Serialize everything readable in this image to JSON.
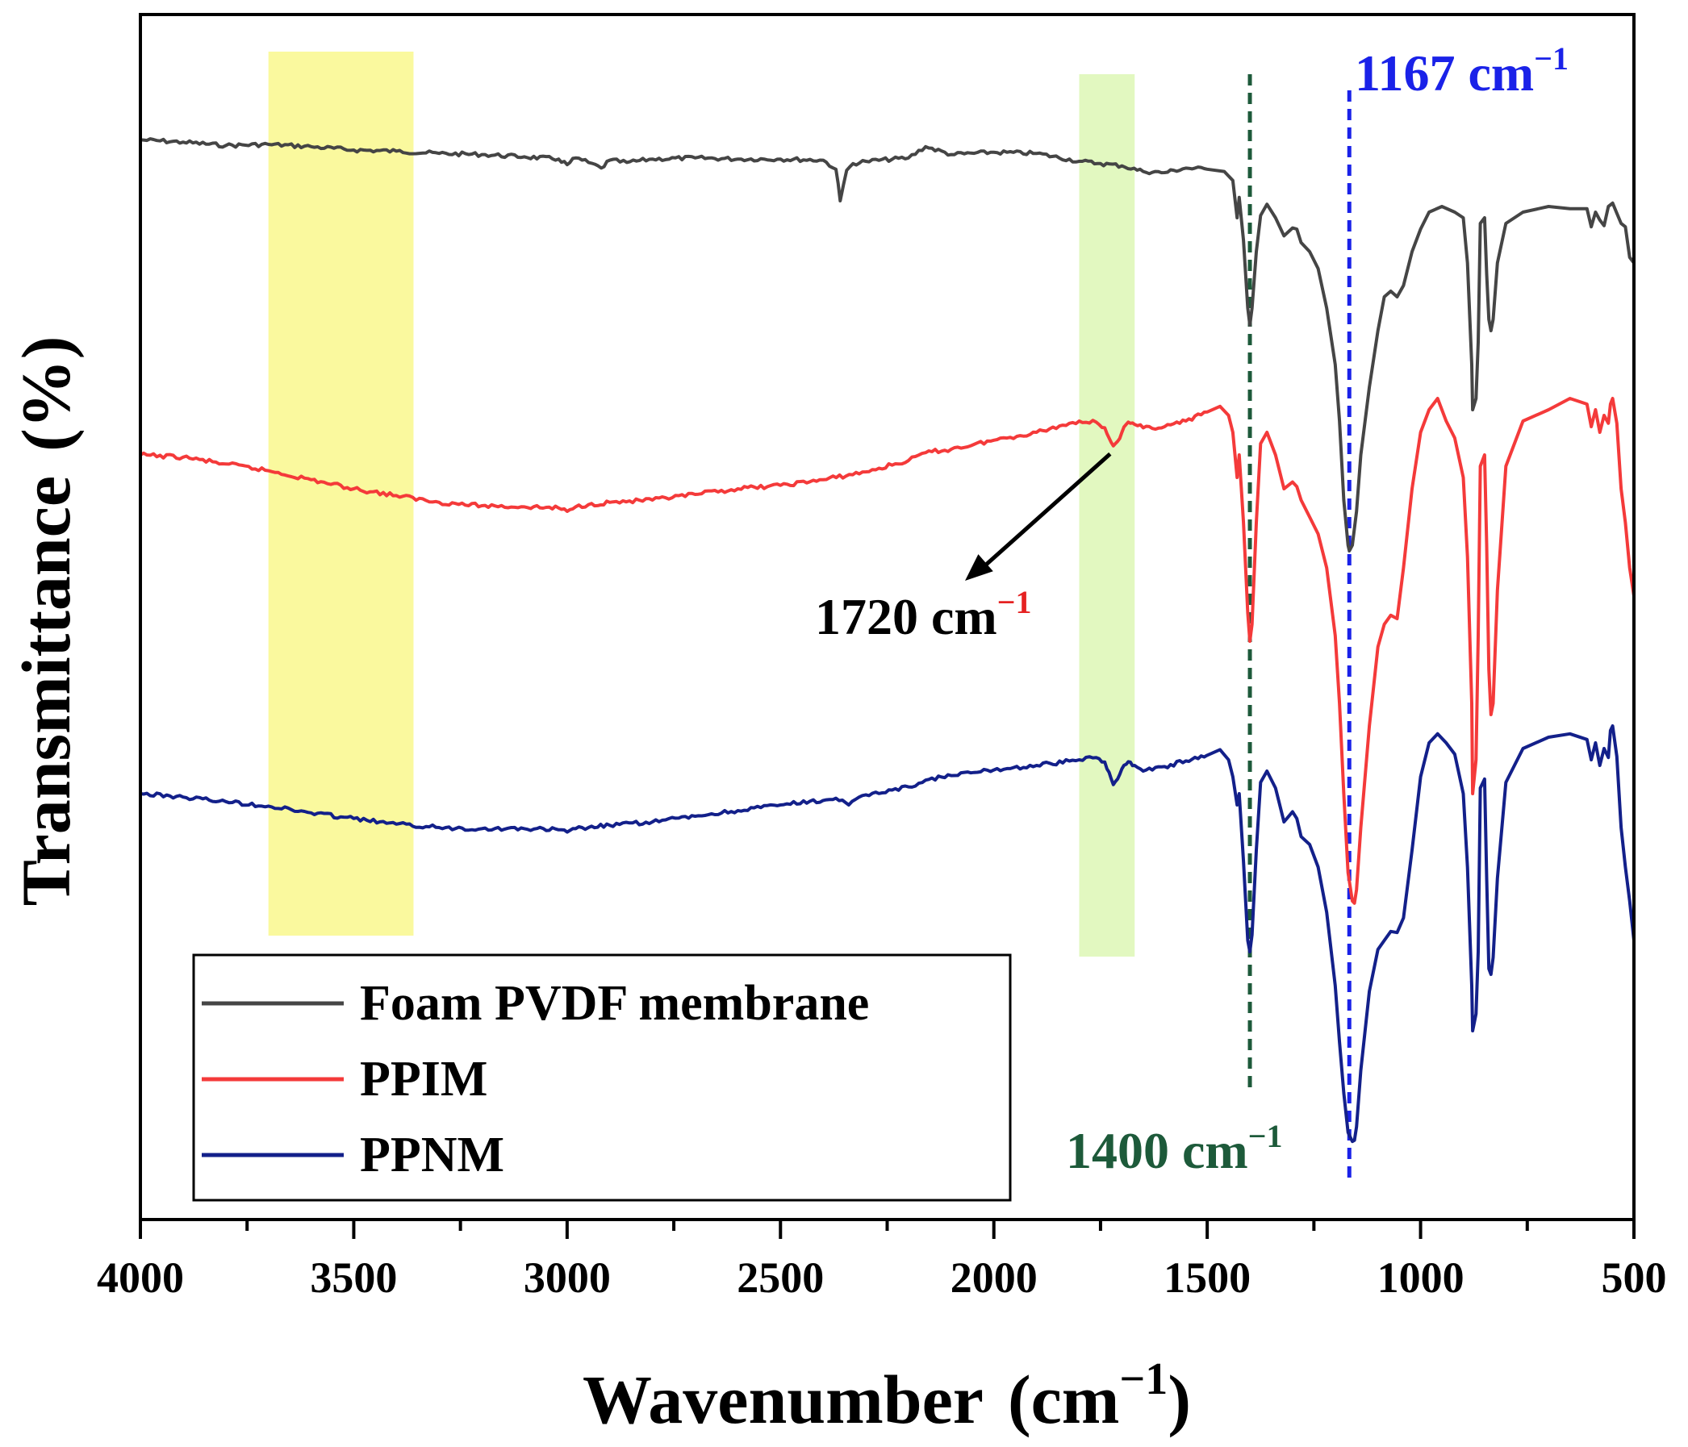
{
  "chart_data": {
    "type": "line",
    "title": "",
    "xlabel": "Wavenumber",
    "xlabel_unit": "(cm",
    "xlabel_unit_sup": "−1",
    "xlabel_unit_close": ")",
    "ylabel": "Transmittance",
    "ylabel_unit": "(%)",
    "xlim": [
      4000,
      500
    ],
    "x_reversed": true,
    "ylim": [
      0,
      100
    ],
    "y_ticks_shown": false,
    "x_ticks": [
      "4000",
      "3500",
      "3000",
      "2500",
      "2000",
      "1500",
      "1000",
      "500"
    ],
    "x_tick_values": [
      4000,
      3500,
      3000,
      2500,
      2000,
      1500,
      1000,
      500
    ],
    "x_minor_ticks": [
      3750,
      3250,
      2750,
      2250,
      1750,
      1250,
      750
    ],
    "highlight_bands": [
      {
        "x_from": 3700,
        "x_to": 3360,
        "color": "#f8f675",
        "opacity": 0.7
      },
      {
        "x_from": 1800,
        "x_to": 1670,
        "color": "#d5f5a5",
        "opacity": 0.7
      }
    ],
    "reference_lines": [
      {
        "x": 1400,
        "color": "#1d5a3a",
        "label": "1400 cm",
        "sup": "−1",
        "label_color": "#1d5a3a"
      },
      {
        "x": 1167,
        "color": "#1a22e8",
        "label": "1167 cm",
        "sup": "−1",
        "label_color": "#1a22e8"
      }
    ],
    "annotations": [
      {
        "text": "1720 cm",
        "sup": "−1",
        "text_color": "#000000",
        "sup_color": "#e52222",
        "points_to_x": 1720,
        "points_to_series": "PPIM"
      }
    ],
    "legend": {
      "position": "bottom-left"
    },
    "series": [
      {
        "name": "Foam PVDF membrane",
        "color": "#454545",
        "x": [
          4000,
          3900,
          3800,
          3700,
          3600,
          3500,
          3400,
          3300,
          3200,
          3100,
          3020,
          3000,
          2980,
          2950,
          2920,
          2900,
          2860,
          2800,
          2700,
          2600,
          2500,
          2400,
          2370,
          2360,
          2345,
          2330,
          2300,
          2200,
          2160,
          2100,
          2000,
          1900,
          1800,
          1750,
          1700,
          1650,
          1600,
          1550,
          1500,
          1460,
          1440,
          1430,
          1425,
          1415,
          1405,
          1400,
          1395,
          1385,
          1375,
          1360,
          1340,
          1320,
          1300,
          1290,
          1280,
          1260,
          1240,
          1220,
          1200,
          1190,
          1180,
          1170,
          1167,
          1160,
          1150,
          1140,
          1120,
          1100,
          1085,
          1070,
          1055,
          1040,
          1020,
          1000,
          980,
          950,
          920,
          900,
          890,
          880,
          878,
          870,
          865,
          860,
          850,
          845,
          840,
          835,
          830,
          820,
          800,
          760,
          700,
          650,
          610,
          600,
          590,
          580,
          570,
          560,
          550,
          540,
          530,
          520,
          510,
          500
        ],
        "y": [
          91.9,
          91.7,
          91.4,
          91.5,
          91.3,
          91.0,
          90.9,
          90.7,
          90.6,
          90.4,
          90.2,
          89.7,
          90.3,
          89.9,
          89.4,
          90.1,
          89.9,
          90.2,
          90.3,
          90.2,
          90.2,
          90.1,
          89.3,
          86.5,
          89.2,
          89.8,
          90.0,
          90.3,
          91.3,
          90.6,
          90.8,
          90.7,
          90.0,
          89.8,
          89.6,
          89.1,
          89.0,
          89.4,
          89.3,
          89.1,
          88.3,
          85.0,
          86.8,
          83.0,
          77.0,
          75.5,
          77.0,
          82.0,
          85.2,
          86.2,
          85.0,
          83.4,
          84.1,
          84.0,
          82.8,
          82.0,
          80.5,
          77.0,
          72.0,
          67.0,
          60.0,
          56.0,
          55.5,
          56.0,
          59.0,
          64.0,
          70.0,
          75.0,
          78.0,
          78.5,
          78.0,
          79.0,
          82.0,
          84.0,
          85.5,
          86.0,
          85.5,
          85.0,
          81.0,
          72.0,
          68.0,
          69.0,
          74.0,
          84.5,
          85.0,
          80.0,
          76.0,
          75.0,
          76.0,
          81.0,
          84.5,
          85.5,
          86.0,
          85.8,
          85.8,
          84.2,
          85.5,
          84.8,
          84.3,
          86.0,
          86.3,
          85.4,
          84.5,
          84.2,
          81.5,
          81.0
        ]
      },
      {
        "name": "PPIM",
        "color": "#f43a3a",
        "x": [
          4000,
          3900,
          3800,
          3700,
          3600,
          3500,
          3400,
          3300,
          3200,
          3100,
          3020,
          3000,
          2980,
          2950,
          2900,
          2800,
          2700,
          2600,
          2500,
          2400,
          2300,
          2200,
          2160,
          2100,
          2000,
          1900,
          1800,
          1760,
          1740,
          1730,
          1720,
          1710,
          1700,
          1690,
          1680,
          1670,
          1650,
          1600,
          1550,
          1500,
          1470,
          1450,
          1440,
          1430,
          1425,
          1415,
          1405,
          1400,
          1395,
          1385,
          1375,
          1360,
          1340,
          1320,
          1300,
          1290,
          1280,
          1260,
          1240,
          1220,
          1200,
          1190,
          1180,
          1170,
          1160,
          1155,
          1150,
          1140,
          1120,
          1100,
          1085,
          1070,
          1055,
          1040,
          1020,
          1000,
          980,
          960,
          940,
          920,
          900,
          890,
          880,
          878,
          870,
          865,
          860,
          850,
          845,
          840,
          835,
          830,
          820,
          800,
          760,
          700,
          650,
          610,
          600,
          590,
          580,
          570,
          560,
          555,
          550,
          540,
          530,
          520,
          510,
          500
        ],
        "y": [
          64.0,
          63.8,
          63.2,
          62.6,
          61.8,
          61.0,
          60.4,
          59.8,
          59.5,
          59.4,
          59.3,
          59.0,
          59.4,
          59.6,
          59.8,
          60.0,
          60.5,
          61.0,
          61.3,
          61.8,
          62.5,
          63.5,
          64.2,
          64.5,
          65.3,
          66.0,
          67.0,
          66.9,
          66.4,
          65.5,
          64.8,
          65.2,
          66.0,
          66.7,
          66.8,
          66.7,
          66.4,
          66.5,
          67.0,
          67.8,
          68.3,
          67.5,
          66.0,
          62.0,
          64.0,
          58.0,
          50.0,
          47.5,
          49.0,
          58.0,
          65.0,
          66.0,
          64.0,
          61.0,
          61.6,
          61.2,
          60.0,
          58.5,
          57.0,
          54.0,
          48.0,
          42.0,
          34.0,
          27.0,
          24.5,
          24.3,
          25.5,
          31.0,
          40.0,
          47.0,
          49.0,
          49.8,
          49.5,
          54.0,
          61.0,
          66.0,
          68.0,
          69.0,
          67.0,
          65.5,
          62.0,
          55.0,
          42.0,
          34.0,
          37.0,
          48.0,
          63.0,
          64.0,
          56.0,
          45.0,
          41.0,
          42.0,
          52.0,
          63.0,
          67.0,
          68.0,
          69.0,
          68.5,
          66.5,
          68.0,
          66.0,
          67.5,
          66.8,
          68.5,
          69.0,
          66.8,
          61.0,
          58.0,
          54.0,
          51.5
        ]
      },
      {
        "name": "PPNM",
        "color": "#13208a",
        "x": [
          4000,
          3900,
          3800,
          3700,
          3600,
          3500,
          3400,
          3300,
          3200,
          3100,
          3020,
          3000,
          2980,
          2950,
          2900,
          2800,
          2700,
          2600,
          2500,
          2400,
          2370,
          2340,
          2300,
          2200,
          2160,
          2100,
          2000,
          1900,
          1800,
          1760,
          1740,
          1730,
          1720,
          1710,
          1700,
          1690,
          1680,
          1670,
          1650,
          1600,
          1550,
          1500,
          1470,
          1450,
          1440,
          1430,
          1425,
          1415,
          1405,
          1400,
          1395,
          1385,
          1375,
          1360,
          1340,
          1320,
          1300,
          1290,
          1280,
          1260,
          1240,
          1220,
          1200,
          1190,
          1180,
          1170,
          1160,
          1155,
          1150,
          1140,
          1120,
          1100,
          1085,
          1070,
          1055,
          1040,
          1020,
          1000,
          980,
          960,
          940,
          920,
          900,
          890,
          880,
          878,
          870,
          865,
          860,
          850,
          845,
          840,
          835,
          830,
          820,
          800,
          760,
          700,
          650,
          610,
          600,
          590,
          580,
          570,
          560,
          555,
          550,
          540,
          530,
          520,
          510,
          500
        ],
        "y": [
          34.0,
          33.7,
          33.3,
          32.9,
          32.3,
          31.8,
          31.3,
          31.0,
          30.9,
          30.9,
          30.8,
          30.6,
          30.9,
          31.0,
          31.2,
          31.5,
          32.0,
          32.5,
          33.0,
          33.4,
          33.6,
          33.0,
          33.9,
          34.6,
          35.2,
          35.6,
          36.1,
          36.5,
          37.0,
          37.2,
          36.8,
          35.9,
          34.8,
          35.3,
          36.2,
          36.6,
          36.8,
          36.5,
          36.0,
          36.4,
          36.9,
          37.4,
          37.9,
          37.0,
          35.5,
          33.0,
          34.0,
          28.0,
          21.0,
          20.0,
          21.5,
          29.0,
          35.0,
          36.0,
          34.5,
          31.5,
          32.4,
          31.8,
          30.2,
          29.5,
          27.5,
          23.5,
          17.0,
          12.0,
          7.5,
          4.0,
          3.2,
          3.3,
          4.5,
          9.5,
          16.5,
          20.2,
          21.0,
          21.8,
          21.7,
          23.0,
          29.0,
          35.5,
          38.5,
          39.3,
          38.5,
          37.5,
          34.0,
          27.5,
          17.0,
          13.0,
          14.5,
          20.0,
          34.5,
          35.3,
          26.5,
          18.5,
          18.0,
          19.5,
          26.5,
          35.0,
          38.0,
          39.0,
          39.3,
          38.8,
          37.0,
          38.5,
          36.5,
          38.0,
          37.2,
          39.6,
          40.0,
          37.3,
          31.0,
          27.5,
          24.5,
          21.0
        ]
      }
    ]
  }
}
